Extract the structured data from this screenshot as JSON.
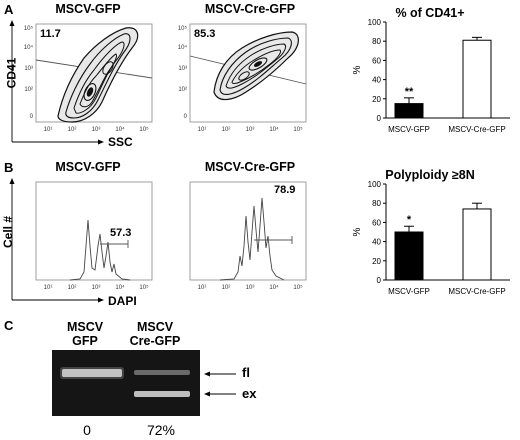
{
  "panels": {
    "A": {
      "letter": "A",
      "plots": [
        {
          "title": "MSCV-GFP",
          "gate_pct": "11.7"
        },
        {
          "title": "MSCV-Cre-GFP",
          "gate_pct": "85.3"
        }
      ],
      "y_axis": "CD41",
      "x_axis": "SSC",
      "y_ticks": [
        "10⁵",
        "10⁴",
        "10³",
        "10²",
        "0"
      ],
      "x_ticks": [
        "10¹",
        "10²",
        "10³",
        "10⁴",
        "10⁵"
      ]
    },
    "B": {
      "letter": "B",
      "plots": [
        {
          "title": "MSCV-GFP",
          "gate_pct": "57.3"
        },
        {
          "title": "MSCV-Cre-GFP",
          "gate_pct": "78.9"
        }
      ],
      "y_axis": "Cell #",
      "x_axis": "DAPI",
      "x_ticks": [
        "10¹",
        "10²",
        "10³",
        "10⁴",
        "10⁵"
      ]
    },
    "C": {
      "letter": "C",
      "lanes": [
        {
          "label_line1": "MSCV",
          "label_line2": "GFP",
          "value": "0"
        },
        {
          "label_line1": "MSCV",
          "label_line2": "Cre-GFP",
          "value": "72%"
        }
      ],
      "band_labels": [
        "fl",
        "ex"
      ]
    }
  },
  "chart_data": [
    {
      "type": "bar",
      "title": "% of CD41+",
      "xlabel": "",
      "ylabel": "%",
      "ylim": [
        0,
        100
      ],
      "yticks": [
        0,
        20,
        40,
        60,
        80,
        100
      ],
      "categories": [
        "MSCV-GFP",
        "MSCV-Cre-GFP"
      ],
      "values": [
        15,
        81
      ],
      "errors": [
        6,
        3
      ],
      "colors": [
        "#000000",
        "#ffffff"
      ],
      "annotations": [
        "**",
        ""
      ]
    },
    {
      "type": "bar",
      "title": "Polyploidy ≥8N",
      "xlabel": "",
      "ylabel": "%",
      "ylim": [
        0,
        100
      ],
      "yticks": [
        0,
        20,
        40,
        60,
        80,
        100
      ],
      "categories": [
        "MSCV-GFP",
        "MSCV-Cre-GFP"
      ],
      "values": [
        50,
        74
      ],
      "errors": [
        6,
        6
      ],
      "colors": [
        "#000000",
        "#ffffff"
      ],
      "annotations": [
        "*",
        ""
      ]
    }
  ]
}
